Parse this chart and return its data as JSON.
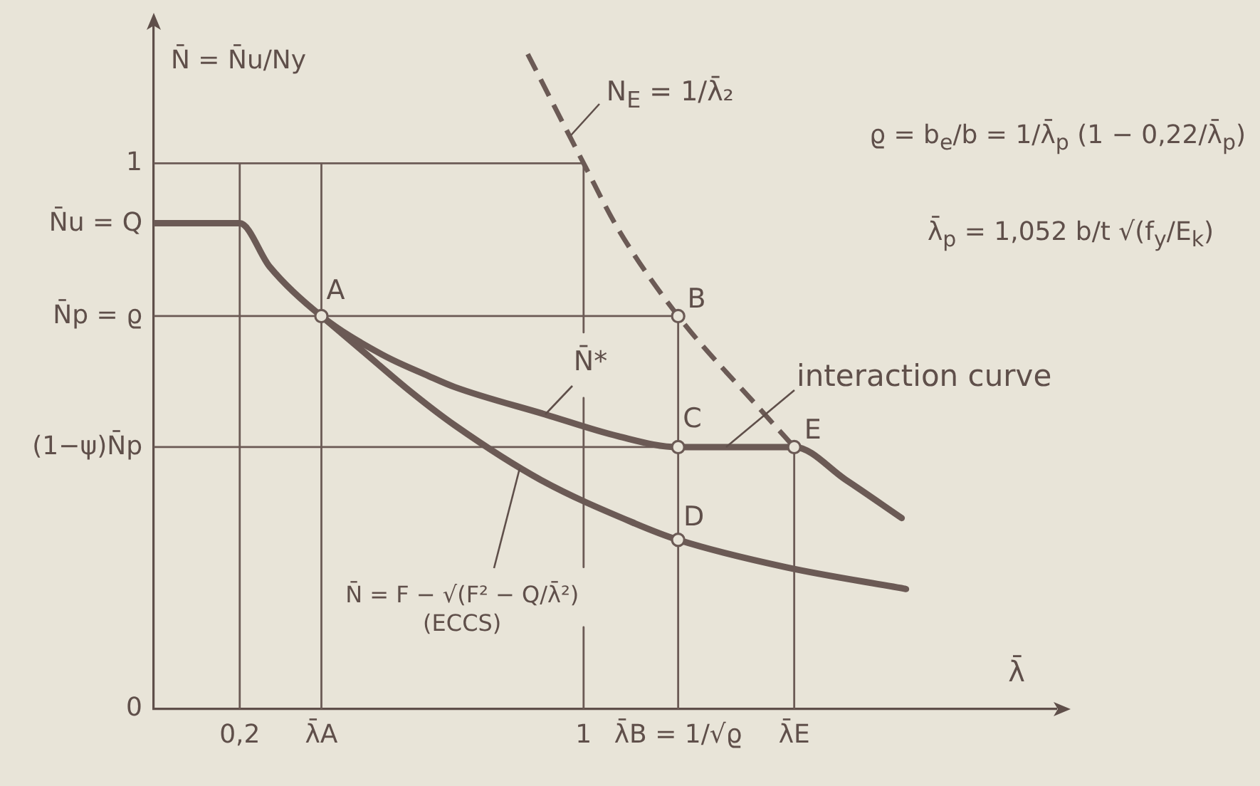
{
  "chart_data": {
    "type": "line",
    "xlabel": "λ̄",
    "ylabel": "N̄ = N̄u/Ny",
    "xlim": [
      0,
      2.1
    ],
    "xticks": [
      {
        "value": 0.2,
        "label": "0,2"
      },
      {
        "value": 0.39,
        "label": "λ̄A"
      },
      1,
      {
        "value": 1.22,
        "label": "λ̄B = 1/√ϱ"
      },
      {
        "value": 1.49,
        "label": "λ̄E"
      }
    ],
    "ylim": [
      0,
      1.25
    ],
    "yticks": [
      0,
      1
    ],
    "grid": false,
    "legend": false,
    "series": [
      {
        "color": "#6b5a55",
        "x": [
          0,
          0.2,
          0.27,
          0.39,
          0.53,
          0.64,
          0.7,
          0.91,
          1.08,
          1.22,
          1.49,
          1.61,
          1.74
        ],
        "values": [
          0.89,
          0.89,
          0.81,
          0.72,
          0.65,
          0.61,
          0.59,
          0.54,
          0.5,
          0.48,
          0.48,
          0.42,
          0.35
        ]
      },
      {
        "color": "#6b5a55",
        "x": [
          0.39,
          0.48,
          0.6,
          0.7,
          0.9,
          1.12,
          1.22,
          1.47,
          1.75
        ],
        "values": [
          0.72,
          0.66,
          0.58,
          0.52,
          0.42,
          0.34,
          0.31,
          0.26,
          0.22
        ]
      },
      {
        "color": "#6b5a55",
        "line_style": "dashed",
        "x": [
          0.87,
          1,
          1.08,
          1.22,
          1.41,
          1.49
        ],
        "values": [
          1.2,
          1,
          0.88,
          0.72,
          0.55,
          0.48
        ]
      },
      {
        "color": "#6b5a55",
        "x": [
          0,
          1
        ],
        "values": [
          1,
          1
        ]
      },
      {
        "color": "#6b5a55",
        "x": [
          0,
          1.22
        ],
        "values": [
          0.72,
          0.72
        ]
      },
      {
        "color": "#6b5a55",
        "x": [
          0,
          1.49
        ],
        "values": [
          0.48,
          0.48
        ]
      },
      {
        "color": "#6b5a55",
        "x": [
          0.2,
          0.2
        ],
        "values": [
          0,
          1
        ]
      },
      {
        "color": "#6b5a55",
        "x": [
          0.39,
          0.39
        ],
        "values": [
          0,
          1
        ]
      },
      {
        "color": "#6b5a55",
        "x": [
          1,
          1
        ],
        "values": [
          0,
          0.15
        ]
      },
      {
        "color": "#6b5a55",
        "x": [
          1,
          1
        ],
        "values": [
          0.26,
          0.57
        ]
      },
      {
        "color": "#6b5a55",
        "x": [
          1,
          1
        ],
        "values": [
          0.69,
          1
        ]
      },
      {
        "color": "#6b5a55",
        "x": [
          1.22,
          1.22
        ],
        "values": [
          0,
          0.72
        ]
      },
      {
        "color": "#6b5a55",
        "x": [
          1.49,
          1.49
        ],
        "values": [
          0,
          0.48
        ]
      },
      {
        "type": "scatter",
        "marker": "circle",
        "color": "#6b5a55",
        "x": [
          0.39,
          1.22,
          1.22,
          1.22,
          1.49
        ],
        "values": [
          0.72,
          0.72,
          0.48,
          0.31,
          0.48
        ]
      }
    ],
    "annotations": [
      {
        "text": "N̄u = Q",
        "x": 0,
        "y": 0.89
      },
      {
        "text": "N̄p = ϱ",
        "x": 0,
        "y": 0.72
      },
      {
        "text": "(1−ψ)N̄p",
        "x": 0,
        "y": 0.48
      },
      {
        "text": "A",
        "x": 0.39,
        "y": 0.72
      },
      {
        "text": "B",
        "x": 1.22,
        "y": 0.72
      },
      {
        "text": "C",
        "x": 1.22,
        "y": 0.48
      },
      {
        "text": "D",
        "x": 1.22,
        "y": 0.31
      },
      {
        "text": "E",
        "x": 1.49,
        "y": 0.48
      },
      {
        "text": "N$_{E}$ = 1/λ̄₂",
        "x": 0.97,
        "y": 1.05
      },
      {
        "text": "N̄*",
        "x": 0.91,
        "y": 0.54
      },
      {
        "text": "interaction curve",
        "x": 1.33,
        "y": 0.48
      },
      {
        "text": "N̄ = F − √(F² − Q/λ̄²)\n(ECCS)",
        "x": 0.85,
        "y": 0.44
      },
      "ϱ = b$_{e}$/b = 1/λ̄$_{p}$ (1 − 0,22/λ̄$_{p}$)",
      "λ̄$_{p}$ = 1,052 b/t √(f$_{y}$/E$_{k}$)"
    ]
  }
}
